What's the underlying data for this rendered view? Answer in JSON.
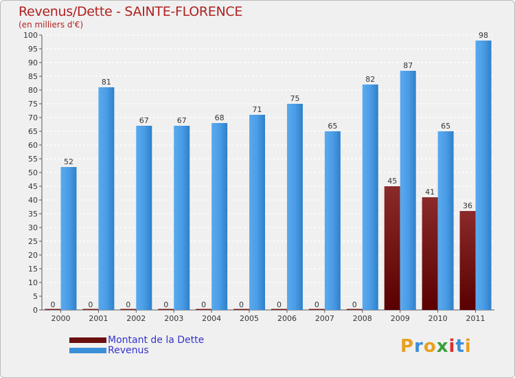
{
  "chart_data": {
    "type": "bar",
    "title": "Revenus/Dette - SAINTE-FLORENCE",
    "subtitle": "(en milliers d'€)",
    "categories": [
      "2000",
      "2001",
      "2002",
      "2003",
      "2004",
      "2005",
      "2006",
      "2007",
      "2008",
      "2009",
      "2010",
      "2011"
    ],
    "series": [
      {
        "name": "Montant de la Dette",
        "values": [
          0,
          0,
          0,
          0,
          0,
          0,
          0,
          0,
          0,
          45,
          41,
          36
        ],
        "color": "#6b0f0f"
      },
      {
        "name": "Revenus",
        "values": [
          52,
          81,
          67,
          67,
          68,
          71,
          75,
          65,
          82,
          87,
          65,
          98
        ],
        "color": "#3a8fd9"
      }
    ],
    "ylim": [
      0,
      100
    ],
    "yticks": [
      0,
      5,
      10,
      15,
      20,
      25,
      30,
      35,
      40,
      45,
      50,
      55,
      60,
      65,
      70,
      75,
      80,
      85,
      90,
      95,
      100
    ],
    "grid": true,
    "legend": "bottom-left"
  },
  "logo": {
    "letters": [
      "P",
      "r",
      "o",
      "x",
      "i",
      "t",
      "i"
    ],
    "colors": [
      "#e8a020",
      "#3a8fd9",
      "#e8a020",
      "#3aa03a",
      "#d83030",
      "#3a8fd9",
      "#e8a020"
    ]
  }
}
